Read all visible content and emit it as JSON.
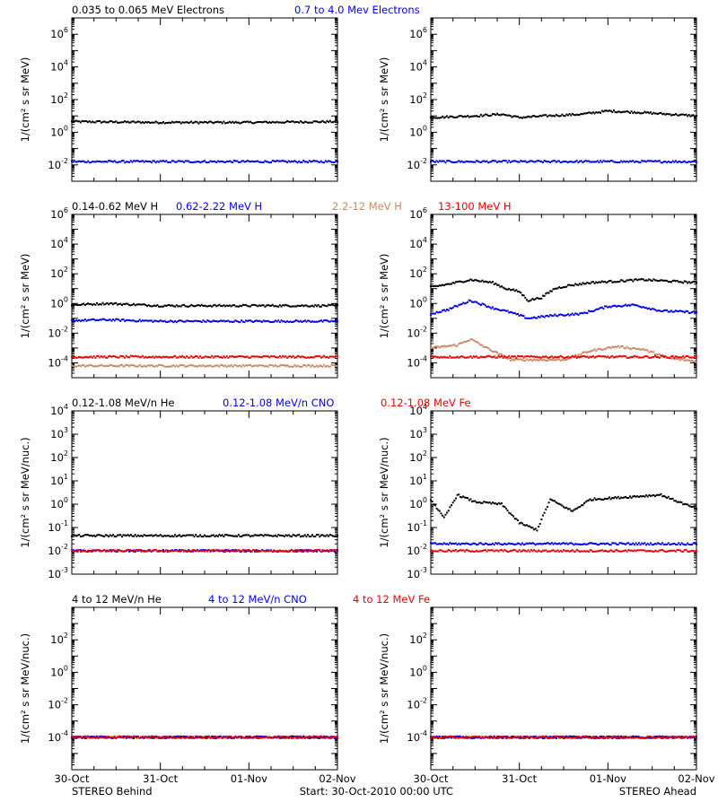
{
  "colors": {
    "black": "#000000",
    "blue": "#0000ee",
    "tan": "#cc8866",
    "red": "#ee0000"
  },
  "x_ticks": [
    "30-Oct",
    "31-Oct",
    "01-Nov",
    "02-Nov"
  ],
  "footer": {
    "left": "STEREO Behind",
    "center": "Start: 30-Oct-2010 00:00 UTC",
    "right": "STEREO Ahead"
  },
  "row_legends": [
    [
      {
        "text": "0.035 to 0.065 MeV Electrons",
        "color": "black"
      },
      {
        "text": "0.7 to 4.0 Mev Electrons",
        "color": "blue"
      }
    ],
    [
      {
        "text": "0.14-0.62 MeV H",
        "color": "black"
      },
      {
        "text": "0.62-2.22 MeV H",
        "color": "blue"
      },
      {
        "text": "2.2-12 MeV H",
        "color": "tan"
      },
      {
        "text": "13-100 MeV H",
        "color": "red"
      }
    ],
    [
      {
        "text": "0.12-1.08 MeV/n He",
        "color": "black"
      },
      {
        "text": "0.12-1.08 MeV/n CNO",
        "color": "blue"
      },
      {
        "text": "0.12-1.08 MeV Fe",
        "color": "red"
      }
    ],
    [
      {
        "text": "4 to 12 MeV/n He",
        "color": "black"
      },
      {
        "text": "4 to 12 MeV/n CNO",
        "color": "blue"
      },
      {
        "text": "4 to 12 MeV Fe",
        "color": "red"
      }
    ]
  ],
  "row_ylabels": [
    "1/(cm² s sr MeV)",
    "1/(cm² s sr MeV)",
    "1/(cm² s sr MeV/nuc.)",
    "1/(cm² s sr MeV/nuc.)"
  ],
  "chart_data": [
    {
      "id": "behind-electrons",
      "type": "scatter",
      "ylog": true,
      "xlim": [
        0,
        3
      ],
      "ylim": [
        -3,
        7
      ],
      "yticks": [
        {
          "exp": "6",
          "v": 6
        },
        {
          "exp": "4",
          "v": 4
        },
        {
          "exp": "2",
          "v": 2
        },
        {
          "exp": "0",
          "v": 0
        },
        {
          "exp": "-2",
          "v": -2
        }
      ],
      "series": [
        {
          "name": "0.035 to 0.065 MeV Electrons",
          "color": "black",
          "x": [
            0,
            1,
            2,
            3
          ],
          "log10_y": [
            0.65,
            0.6,
            0.6,
            0.65
          ]
        },
        {
          "name": "0.7 to 4.0 Mev Electrons",
          "color": "blue",
          "x": [
            0,
            1,
            2,
            3
          ],
          "log10_y": [
            -1.8,
            -1.8,
            -1.8,
            -1.8
          ]
        }
      ]
    },
    {
      "id": "ahead-electrons",
      "type": "scatter",
      "ylog": true,
      "xlim": [
        0,
        3
      ],
      "ylim": [
        -3,
        7
      ],
      "yticks": [
        {
          "exp": "6",
          "v": 6
        },
        {
          "exp": "4",
          "v": 4
        },
        {
          "exp": "2",
          "v": 2
        },
        {
          "exp": "0",
          "v": 0
        },
        {
          "exp": "-2",
          "v": -2
        }
      ],
      "series": [
        {
          "name": "0.035 to 0.065 MeV Electrons",
          "color": "black",
          "x": [
            0,
            0.5,
            0.8,
            1.0,
            1.3,
            1.7,
            2.0,
            2.4,
            3.0
          ],
          "log10_y": [
            0.9,
            1.0,
            1.1,
            0.9,
            1.0,
            1.1,
            1.3,
            1.2,
            1.0
          ]
        },
        {
          "name": "0.7 to 4.0 Mev Electrons",
          "color": "blue",
          "x": [
            0,
            1,
            2,
            3
          ],
          "log10_y": [
            -1.8,
            -1.8,
            -1.8,
            -1.8
          ]
        }
      ]
    },
    {
      "id": "behind-protons",
      "type": "scatter",
      "ylog": true,
      "xlim": [
        0,
        3
      ],
      "ylim": [
        -5,
        6
      ],
      "yticks": [
        {
          "exp": "6",
          "v": 6
        },
        {
          "exp": "4",
          "v": 4
        },
        {
          "exp": "2",
          "v": 2
        },
        {
          "exp": "0",
          "v": 0
        },
        {
          "exp": "-2",
          "v": -2
        },
        {
          "exp": "-4",
          "v": -4
        }
      ],
      "series": [
        {
          "name": "0.14-0.62 MeV H",
          "color": "black",
          "x": [
            0,
            0.4,
            1.0,
            2.0,
            3.0
          ],
          "log10_y": [
            -0.1,
            0.0,
            -0.15,
            -0.15,
            -0.15
          ]
        },
        {
          "name": "0.62-2.22 MeV H",
          "color": "blue",
          "x": [
            0,
            0.4,
            1.0,
            2.0,
            3.0
          ],
          "log10_y": [
            -1.15,
            -1.1,
            -1.2,
            -1.2,
            -1.2
          ]
        },
        {
          "name": "2.2-12 MeV H",
          "color": "tan",
          "x": [
            0,
            1,
            2,
            3
          ],
          "log10_y": [
            -4.2,
            -4.2,
            -4.2,
            -4.2
          ]
        },
        {
          "name": "13-100 MeV H",
          "color": "red",
          "x": [
            0,
            1,
            2,
            3
          ],
          "log10_y": [
            -3.6,
            -3.6,
            -3.6,
            -3.6
          ]
        }
      ]
    },
    {
      "id": "ahead-protons",
      "type": "scatter",
      "ylog": true,
      "xlim": [
        0,
        3
      ],
      "ylim": [
        -5,
        6
      ],
      "yticks": [
        {
          "exp": "6",
          "v": 6
        },
        {
          "exp": "4",
          "v": 4
        },
        {
          "exp": "2",
          "v": 2
        },
        {
          "exp": "0",
          "v": 0
        },
        {
          "exp": "-2",
          "v": -2
        },
        {
          "exp": "-4",
          "v": -4
        }
      ],
      "series": [
        {
          "name": "0.14-0.62 MeV H",
          "color": "black",
          "x": [
            0,
            0.2,
            0.45,
            0.7,
            0.85,
            1.0,
            1.1,
            1.25,
            1.4,
            1.55,
            1.8,
            2.1,
            2.4,
            2.7,
            3.0
          ],
          "log10_y": [
            1.1,
            1.3,
            1.6,
            1.4,
            1.0,
            0.8,
            0.2,
            0.4,
            1.0,
            1.2,
            1.4,
            1.5,
            1.6,
            1.5,
            1.4
          ]
        },
        {
          "name": "0.62-2.22 MeV H",
          "color": "blue",
          "x": [
            0,
            0.2,
            0.45,
            0.7,
            0.9,
            1.1,
            1.4,
            1.7,
            2.0,
            2.3,
            2.6,
            3.0
          ],
          "log10_y": [
            -0.7,
            -0.4,
            0.2,
            -0.3,
            -0.6,
            -1.0,
            -0.8,
            -0.7,
            -0.2,
            -0.1,
            -0.5,
            -0.6
          ]
        },
        {
          "name": "2.2-12 MeV H",
          "color": "tan",
          "x": [
            0,
            0.3,
            0.45,
            0.6,
            0.9,
            1.5,
            1.8,
            2.1,
            2.4,
            2.7,
            3.0
          ],
          "log10_y": [
            -3.0,
            -2.8,
            -2.4,
            -2.9,
            -3.8,
            -3.8,
            -3.2,
            -2.9,
            -3.1,
            -3.7,
            -3.9
          ]
        },
        {
          "name": "13-100 MeV H",
          "color": "red",
          "x": [
            0,
            1,
            2,
            3
          ],
          "log10_y": [
            -3.6,
            -3.6,
            -3.6,
            -3.6
          ]
        }
      ]
    },
    {
      "id": "behind-heavy-low",
      "type": "scatter",
      "ylog": true,
      "xlim": [
        0,
        3
      ],
      "ylim": [
        -3,
        4
      ],
      "yticks": [
        {
          "exp": "4",
          "v": 4
        },
        {
          "exp": "3",
          "v": 3
        },
        {
          "exp": "2",
          "v": 2
        },
        {
          "exp": "1",
          "v": 1
        },
        {
          "exp": "0",
          "v": 0
        },
        {
          "exp": "-1",
          "v": -1
        },
        {
          "exp": "-2",
          "v": -2
        },
        {
          "exp": "-3",
          "v": -3
        }
      ],
      "series": [
        {
          "name": "0.12-1.08 MeV/n He",
          "color": "black",
          "x": [
            0,
            3
          ],
          "log10_y": [
            -1.35,
            -1.35
          ]
        },
        {
          "name": "0.12-1.08 MeV/n CNO",
          "color": "blue",
          "x": [
            0,
            3
          ],
          "log10_y": [
            -2.0,
            -2.0
          ]
        },
        {
          "name": "0.12-1.08 MeV Fe",
          "color": "red",
          "x": [
            0,
            3
          ],
          "log10_y": [
            -2.0,
            -2.0
          ]
        }
      ]
    },
    {
      "id": "ahead-heavy-low",
      "type": "scatter",
      "ylog": true,
      "xlim": [
        0,
        3
      ],
      "ylim": [
        -3,
        4
      ],
      "yticks": [
        {
          "exp": "4",
          "v": 4
        },
        {
          "exp": "3",
          "v": 3
        },
        {
          "exp": "2",
          "v": 2
        },
        {
          "exp": "1",
          "v": 1
        },
        {
          "exp": "0",
          "v": 0
        },
        {
          "exp": "-1",
          "v": -1
        },
        {
          "exp": "-2",
          "v": -2
        },
        {
          "exp": "-3",
          "v": -3
        }
      ],
      "series": [
        {
          "name": "0.12-1.08 MeV/n He",
          "color": "black",
          "x": [
            0,
            0.15,
            0.3,
            0.5,
            0.8,
            1.0,
            1.2,
            1.35,
            1.6,
            1.8,
            2.2,
            2.6,
            3.0
          ],
          "log10_y": [
            0.2,
            -0.6,
            0.4,
            0.1,
            0.0,
            -0.8,
            -1.1,
            0.2,
            -0.3,
            0.2,
            0.3,
            0.4,
            -0.2
          ]
        },
        {
          "name": "0.12-1.08 MeV/n CNO",
          "color": "blue",
          "x": [
            0,
            3
          ],
          "log10_y": [
            -1.7,
            -1.7
          ]
        },
        {
          "name": "0.12-1.08 MeV Fe",
          "color": "red",
          "x": [
            0,
            3
          ],
          "log10_y": [
            -2.0,
            -2.0
          ]
        }
      ]
    },
    {
      "id": "behind-heavy-high",
      "type": "scatter",
      "ylog": true,
      "xlim": [
        0,
        3
      ],
      "ylim": [
        -6,
        4
      ],
      "yticks": [
        {
          "exp": "2",
          "v": 2
        },
        {
          "exp": "0",
          "v": 0
        },
        {
          "exp": "-2",
          "v": -2
        },
        {
          "exp": "-4",
          "v": -4
        }
      ],
      "series": [
        {
          "name": "4 to 12 MeV/n He",
          "color": "black",
          "x": [
            0,
            3
          ],
          "log10_y": [
            -4.0,
            -4.0
          ]
        },
        {
          "name": "4 to 12 MeV/n CNO",
          "color": "blue",
          "x": [
            0,
            3
          ],
          "log10_y": [
            -4.0,
            -4.0
          ]
        },
        {
          "name": "4 to 12 MeV Fe",
          "color": "red",
          "x": [
            0,
            3
          ],
          "log10_y": [
            -4.0,
            -4.0
          ]
        }
      ]
    },
    {
      "id": "ahead-heavy-high",
      "type": "scatter",
      "ylog": true,
      "xlim": [
        0,
        3
      ],
      "ylim": [
        -6,
        4
      ],
      "yticks": [
        {
          "exp": "2",
          "v": 2
        },
        {
          "exp": "0",
          "v": 0
        },
        {
          "exp": "-2",
          "v": -2
        },
        {
          "exp": "-4",
          "v": -4
        }
      ],
      "series": [
        {
          "name": "4 to 12 MeV/n He",
          "color": "black",
          "x": [
            0,
            3
          ],
          "log10_y": [
            -4.0,
            -4.0
          ]
        },
        {
          "name": "4 to 12 MeV/n CNO",
          "color": "blue",
          "x": [
            0,
            3
          ],
          "log10_y": [
            -4.0,
            -4.0
          ]
        },
        {
          "name": "4 to 12 MeV Fe",
          "color": "red",
          "x": [
            0,
            3
          ],
          "log10_y": [
            -4.0,
            -4.0
          ]
        }
      ]
    }
  ]
}
